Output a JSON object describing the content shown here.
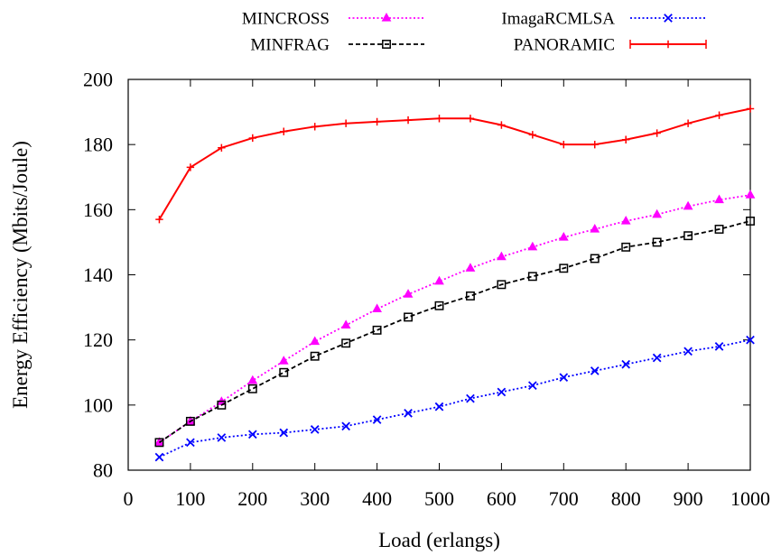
{
  "chart_data": {
    "type": "line",
    "xlabel": "Load (erlangs)",
    "ylabel": "Energy Efficiency (Mbits/Joule)",
    "xlim": [
      0,
      1000
    ],
    "ylim": [
      80,
      200
    ],
    "xticks": [
      "0",
      "100",
      "200",
      "300",
      "400",
      "500",
      "600",
      "700",
      "800",
      "900",
      "1000"
    ],
    "yticks": [
      "80",
      "100",
      "120",
      "140",
      "160",
      "180",
      "200"
    ],
    "grid": false,
    "legend_position": "top",
    "x": [
      50,
      100,
      150,
      200,
      250,
      300,
      350,
      400,
      450,
      500,
      550,
      600,
      650,
      700,
      750,
      800,
      850,
      900,
      950,
      1000
    ],
    "series": [
      {
        "name": "MINCROSS",
        "color": "#ff00ff",
        "line_style": "dotted",
        "marker": "filled-triangle",
        "values": [
          88.5,
          95,
          101,
          107.5,
          113.5,
          119.5,
          124.5,
          129.5,
          134,
          138,
          142,
          145.5,
          148.5,
          151.5,
          154,
          156.5,
          158.5,
          161,
          163,
          164.5
        ]
      },
      {
        "name": "MINFRAG",
        "color": "#000000",
        "line_style": "dashed",
        "marker": "open-square",
        "values": [
          88.5,
          95,
          100,
          105,
          110,
          115,
          119,
          123,
          127,
          130.5,
          133.5,
          137,
          139.5,
          142,
          145,
          148.5,
          150,
          152,
          154,
          156.5
        ]
      },
      {
        "name": "ImagaRCMLSA",
        "color": "#0000ff",
        "line_style": "dotted",
        "marker": "x",
        "values": [
          84,
          88.5,
          90,
          91,
          91.5,
          92.5,
          93.5,
          95.5,
          97.5,
          99.5,
          102,
          104,
          106,
          108.5,
          110.5,
          112.5,
          114.5,
          116.5,
          118,
          120
        ]
      },
      {
        "name": "PANORAMIC",
        "color": "#ff0000",
        "line_style": "solid",
        "marker": "plus",
        "values": [
          157,
          173,
          179,
          182,
          184,
          185.5,
          186.5,
          187,
          187.5,
          188,
          188,
          186,
          183,
          180,
          180,
          181.5,
          183.5,
          186.5,
          189,
          191
        ]
      }
    ]
  }
}
